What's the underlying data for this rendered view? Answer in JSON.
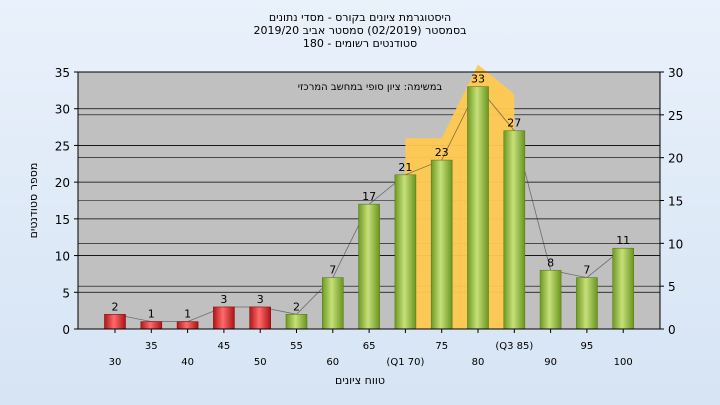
{
  "chart_data": {
    "type": "bar",
    "title_lines": [
      "היסטוגרמת ציונים בקורס - מסדי נתונים",
      "בסמסטר  (02/2019)  סמסטר אביב 2019/20",
      "סטודנטים רשומים - 180"
    ],
    "annotation": "במשימה: ציון סופי במחשב המרכזי",
    "xlabel": "טווח ציונים",
    "ylabel": "מספר סטודנטים",
    "ylim": [
      0,
      35
    ],
    "y2lim": [
      0,
      30
    ],
    "yticks": [
      0,
      5,
      10,
      15,
      20,
      25,
      30,
      35
    ],
    "y2ticks": [
      0,
      5,
      10,
      15,
      20,
      25,
      30
    ],
    "x_tick_labels": [
      "30",
      "35",
      "40",
      "45",
      "50",
      "55",
      "60",
      "65",
      "(Q1 70)",
      "75",
      "80",
      "(Q3 85)",
      "90",
      "95",
      "100"
    ],
    "categories": [
      "30",
      "35",
      "40",
      "45",
      "50",
      "55",
      "60",
      "65",
      "70",
      "75",
      "80",
      "85",
      "90",
      "95",
      "100"
    ],
    "values": [
      2,
      1,
      1,
      3,
      3,
      2,
      7,
      17,
      21,
      23,
      33,
      27,
      8,
      7,
      11
    ],
    "data_labels": [
      "2",
      "1",
      "1",
      "3",
      "3",
      "2",
      "7",
      "17",
      "21",
      "23",
      "33",
      "27",
      "8",
      "7",
      "11"
    ],
    "fail_threshold": 55,
    "grid": true,
    "colors": {
      "fail_bar": "#d42a2a",
      "pass_bar": "#8ab83a",
      "interquartile_area": "#ffc850",
      "plot_background": "#c0c0c0",
      "page_background": "#e4edf8"
    }
  }
}
